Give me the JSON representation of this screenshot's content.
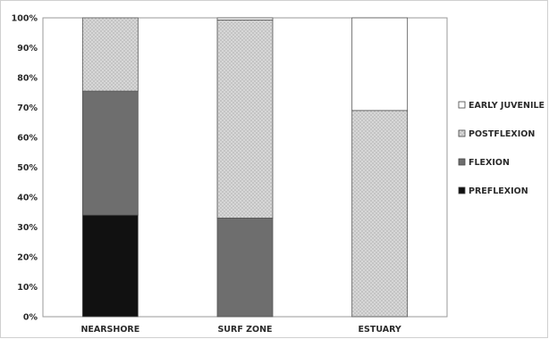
{
  "chart_data": {
    "type": "bar",
    "stacked": true,
    "normalized": true,
    "categories": [
      "NEARSHORE",
      "SURF ZONE",
      "ESTUARY"
    ],
    "series": [
      {
        "name": "PREFLEXION",
        "values": [
          34,
          0,
          0
        ],
        "color": "#111111",
        "pattern": "solid"
      },
      {
        "name": "FLEXION",
        "values": [
          41.5,
          33,
          0
        ],
        "color": "#6e6e6e",
        "pattern": "solid"
      },
      {
        "name": "POSTFLEXION",
        "values": [
          24.5,
          66.3,
          69
        ],
        "color": "#c9c9c9",
        "pattern": "dotted"
      },
      {
        "name": "EARLY JUVENILE",
        "values": [
          0,
          0.7,
          31
        ],
        "color": "#ffffff",
        "pattern": "solid"
      }
    ],
    "ylim": [
      0,
      100
    ],
    "yticks": [
      "0%",
      "10%",
      "20%",
      "30%",
      "40%",
      "50%",
      "60%",
      "70%",
      "80%",
      "90%",
      "100%"
    ],
    "legend": {
      "placement": "right",
      "order": [
        "EARLY JUVENILE",
        "POSTFLEXION",
        "FLEXION",
        "PREFLEXION"
      ]
    },
    "grid": false
  }
}
